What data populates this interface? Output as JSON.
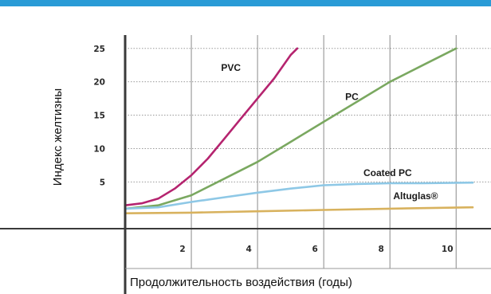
{
  "chart_data": {
    "type": "line",
    "title": "",
    "xlabel": "Продолжительность воздействия (годы)",
    "ylabel": "Индекс желтизны",
    "xlim": [
      0,
      10.5
    ],
    "ylim": [
      -2,
      27
    ],
    "grid": true,
    "x_ticks": [
      {
        "value": 2,
        "label": "2"
      },
      {
        "value": 4,
        "label": "4"
      },
      {
        "value": 6,
        "label": "6"
      },
      {
        "value": 8,
        "label": "8"
      },
      {
        "value": 10,
        "label": "10"
      }
    ],
    "y_ticks": [
      {
        "value": 5,
        "label": "5"
      },
      {
        "value": 10,
        "label": "10"
      },
      {
        "value": 15,
        "label": "15"
      },
      {
        "value": 20,
        "label": "20"
      },
      {
        "value": 25,
        "label": "25"
      }
    ],
    "series": [
      {
        "name": "PVC",
        "color": "#b5246f",
        "x": [
          0,
          0.5,
          1,
          1.5,
          2,
          2.5,
          3,
          3.5,
          4,
          4.5,
          5,
          5.2
        ],
        "y": [
          1.5,
          1.8,
          2.5,
          4,
          6,
          8.5,
          11.5,
          14.5,
          17.5,
          20.5,
          24,
          25
        ]
      },
      {
        "name": "PC",
        "color": "#7aa860",
        "x": [
          0,
          1,
          2,
          3,
          4,
          5,
          6,
          7,
          8,
          9,
          10
        ],
        "y": [
          1,
          1.5,
          3,
          5.5,
          8,
          11,
          14,
          17,
          20,
          22.5,
          25
        ]
      },
      {
        "name": "Coated PC",
        "color": "#8ec8e6",
        "x": [
          0,
          1,
          2,
          3,
          4,
          5,
          6,
          7,
          8,
          9,
          10.5
        ],
        "y": [
          1,
          1.2,
          2,
          2.7,
          3.4,
          4,
          4.5,
          4.7,
          4.8,
          4.8,
          4.9
        ]
      },
      {
        "name": "Altuglas®",
        "color": "#d8b25e",
        "x": [
          0,
          2,
          4,
          6,
          8,
          10.5
        ],
        "y": [
          0.3,
          0.4,
          0.6,
          0.8,
          1.0,
          1.2
        ]
      }
    ]
  }
}
